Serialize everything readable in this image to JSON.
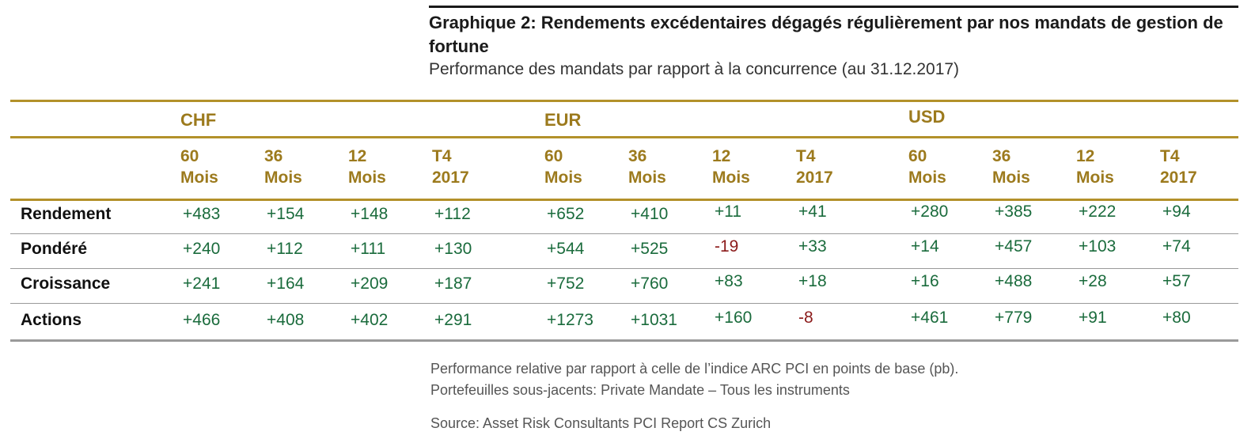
{
  "header": {
    "title": "Graphique 2: Rendements excédentaires dégagés régulièrement par nos mandats de gestion de fortune",
    "subtitle": "Performance des mandats par rapport à la concurrence (au 31.12.2017)"
  },
  "table": {
    "currencies": [
      "CHF",
      "EUR",
      "USD"
    ],
    "columns": [
      {
        "l1": "60",
        "l2": "Mois"
      },
      {
        "l1": "36",
        "l2": "Mois"
      },
      {
        "l1": "12",
        "l2": "Mois"
      },
      {
        "l1": "T4",
        "l2": "2017"
      },
      {
        "l1": "60",
        "l2": "Mois"
      },
      {
        "l1": "36",
        "l2": "Mois"
      },
      {
        "l1": "12",
        "l2": "Mois"
      },
      {
        "l1": "T4",
        "l2": "2017"
      },
      {
        "l1": "60",
        "l2": "Mois"
      },
      {
        "l1": "36",
        "l2": "Mois"
      },
      {
        "l1": "12",
        "l2": "Mois"
      },
      {
        "l1": "T4",
        "l2": "2017"
      }
    ],
    "rows": [
      {
        "label": "Rendement",
        "values": [
          "+483",
          "+154",
          "+148",
          "+112",
          "+652",
          "+410",
          "+11",
          "+41",
          "+280",
          "+385",
          "+222",
          "+94"
        ]
      },
      {
        "label": "Pondéré",
        "values": [
          "+240",
          "+112",
          "+111",
          "+130",
          "+544",
          "+525",
          "-19",
          "+33",
          "+14",
          "+457",
          "+103",
          "+74"
        ]
      },
      {
        "label": "Croissance",
        "values": [
          "+241",
          "+164",
          "+209",
          "+187",
          "+752",
          "+760",
          "+83",
          "+18",
          "+16",
          "+488",
          "+28",
          "+57"
        ]
      },
      {
        "label": "Actions",
        "values": [
          "+466",
          "+408",
          "+402",
          "+291",
          "+1273",
          "+1031",
          "+160",
          "-8",
          "+461",
          "+779",
          "+91",
          "+80"
        ]
      }
    ],
    "positive_color": "#1a6b3c",
    "negative_color": "#8b1a1a",
    "accent_color": "#9c7a1d"
  },
  "footer": {
    "note1": "Performance relative par rapport à celle de l’indice ARC PCI en points de base (pb).",
    "note2": "Portefeuilles sous-jacents: Private Mandate – Tous les instruments",
    "source": "Source: Asset Risk Consultants PCI Report CS Zurich"
  }
}
